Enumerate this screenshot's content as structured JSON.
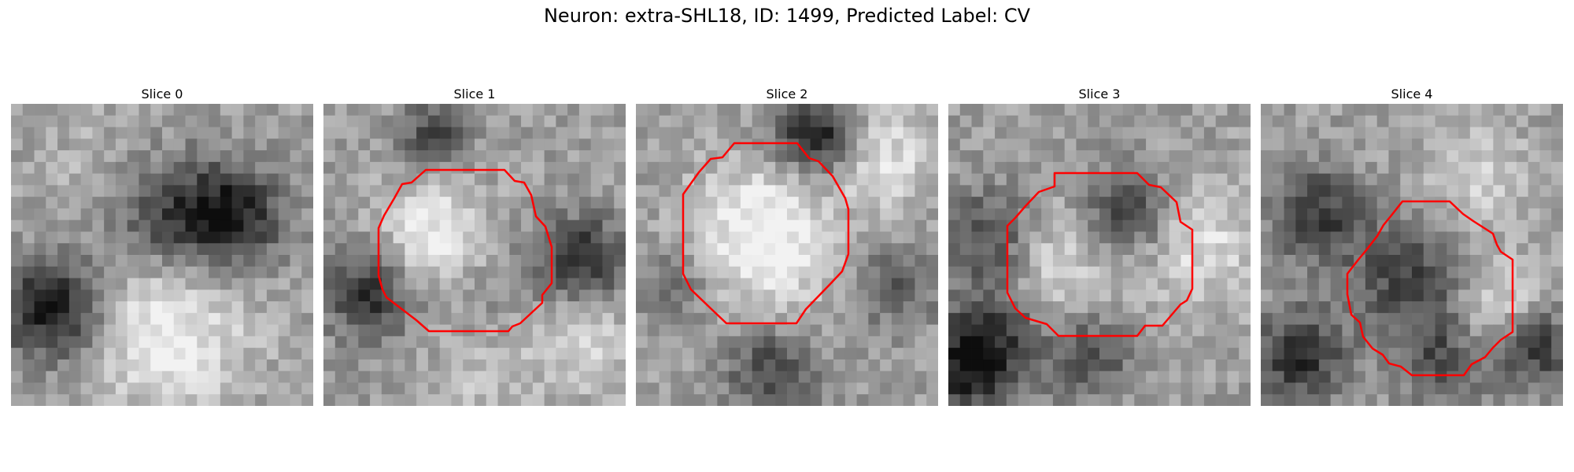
{
  "figure": {
    "title": "Neuron: extra-SHL18, ID: 1499, Predicted Label: CV"
  },
  "panels": [
    {
      "title": "Slice 0",
      "has_contour": false
    },
    {
      "title": "Slice 1",
      "has_contour": true
    },
    {
      "title": "Slice 2",
      "has_contour": true
    },
    {
      "title": "Slice 3",
      "has_contour": true
    },
    {
      "title": "Slice 4",
      "has_contour": true
    }
  ],
  "colors": {
    "contour": "#ff0000",
    "background": "#ffffff"
  },
  "image": {
    "colormap": "grayscale",
    "grid_size": 26
  }
}
